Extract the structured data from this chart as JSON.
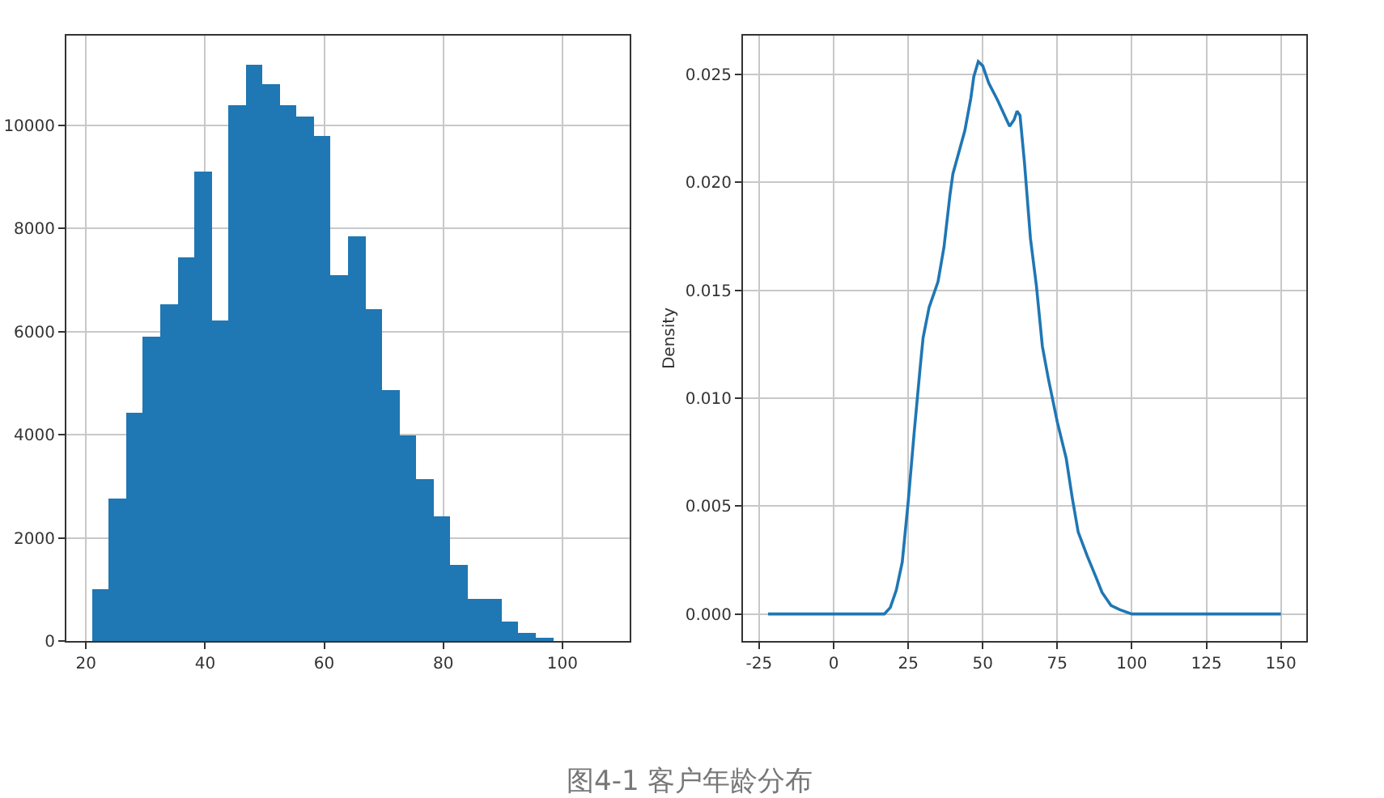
{
  "chart_data": [
    {
      "type": "histogram",
      "bins": [
        21,
        23.867,
        26.733,
        29.6,
        32.467,
        35.333,
        38.2,
        41.067,
        43.933,
        46.8,
        49.667,
        52.533,
        55.4,
        58.267,
        61.133,
        64,
        66.867,
        69.733,
        72.6,
        75.467,
        78.333,
        81.2,
        84.067,
        86.933,
        89.8,
        92.667,
        95.533,
        98.4,
        101.267,
        104.133,
        107
      ],
      "values": [
        1000,
        2760,
        4430,
        5910,
        6540,
        7430,
        9110,
        6220,
        10400,
        11190,
        10790,
        10380,
        10180,
        9790,
        7090,
        7860,
        6450,
        4880,
        4000,
        3150,
        2430,
        1490,
        810,
        830,
        370,
        150,
        40,
        0,
        0,
        0
      ],
      "color": "#1f77b4",
      "xlim": [
        16.7,
        111.3
      ],
      "ylim": [
        0,
        11740
      ],
      "xticks": [
        20,
        40,
        60,
        80,
        100
      ],
      "yticks": [
        0,
        2000,
        4000,
        6000,
        8000,
        10000
      ],
      "grid": true,
      "annotations": [
        "图4-1 客户年龄分布"
      ]
    },
    {
      "type": "line",
      "ylabel": "Density",
      "x": [
        -22,
        17,
        19,
        21,
        23,
        25,
        27,
        29,
        30,
        32,
        35,
        37,
        39,
        40,
        42,
        44,
        46,
        47,
        48.5,
        50,
        52,
        55,
        58,
        59,
        60.5,
        61.5,
        62.5,
        64,
        66,
        68,
        70,
        72,
        75,
        78,
        80,
        82,
        85,
        88,
        90,
        93,
        96,
        100,
        150
      ],
      "values": [
        0,
        0,
        0.0003,
        0.0011,
        0.0024,
        0.0052,
        0.0084,
        0.0114,
        0.0128,
        0.0142,
        0.0154,
        0.017,
        0.0194,
        0.0204,
        0.0214,
        0.0224,
        0.0239,
        0.0249,
        0.0256,
        0.0254,
        0.0246,
        0.0238,
        0.0229,
        0.0226,
        0.0229,
        0.0233,
        0.0231,
        0.0209,
        0.0174,
        0.0152,
        0.0124,
        0.0109,
        0.0089,
        0.0072,
        0.0054,
        0.0038,
        0.0027,
        0.0017,
        0.001,
        0.0004,
        0.0002,
        0,
        0
      ],
      "color": "#1f77b4",
      "xlim": [
        -30.4,
        158.5
      ],
      "ylim": [
        -0.00125,
        0.0268
      ],
      "xticks": [
        -25,
        0,
        25,
        50,
        75,
        100,
        125,
        150
      ],
      "yticks": [
        {
          "value": 0,
          "label": "0.000"
        },
        {
          "value": 0.005,
          "label": "0.005"
        },
        {
          "value": 0.01,
          "label": "0.010"
        },
        {
          "value": 0.015,
          "label": "0.015"
        },
        {
          "value": 0.02,
          "label": "0.020"
        },
        {
          "value": 0.025,
          "label": "0.025"
        }
      ],
      "grid": true,
      "marker": "none",
      "line_style": "solid"
    }
  ]
}
